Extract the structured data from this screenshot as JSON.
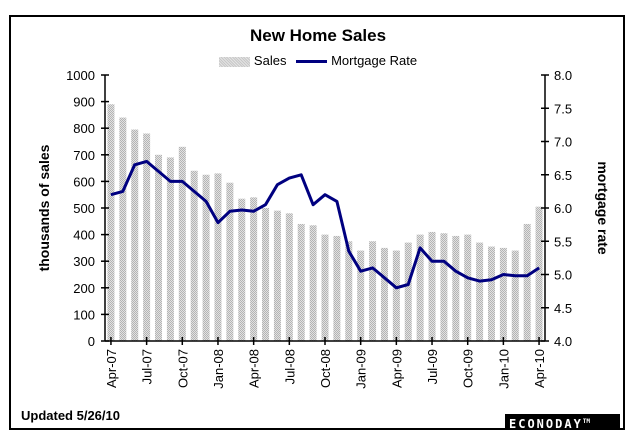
{
  "chart_data": {
    "type": "bar+line",
    "title": "New Home Sales",
    "legend": [
      "Sales",
      "Mortgage Rate"
    ],
    "legend_placement": "top-center",
    "ylabel_left": "thousands of sales",
    "ylabel_right": "mortgage rate",
    "ylim_left": [
      0,
      1000
    ],
    "ylim_right": [
      4.0,
      8.0
    ],
    "yticks_left": [
      "0",
      "100",
      "200",
      "300",
      "400",
      "500",
      "600",
      "700",
      "800",
      "900",
      "1000"
    ],
    "yticks_right": [
      "4.0",
      "4.5",
      "5.0",
      "5.5",
      "6.0",
      "6.5",
      "7.0",
      "7.5",
      "8.0"
    ],
    "x_tick_labels": [
      "Apr-07",
      "Jul-07",
      "Oct-07",
      "Jan-08",
      "Apr-08",
      "Jul-08",
      "Oct-08",
      "Jan-09",
      "Apr-09",
      "Jul-09",
      "Oct-09",
      "Jan-10",
      "Apr-10"
    ],
    "categories": [
      "Apr-07",
      "May-07",
      "Jun-07",
      "Jul-07",
      "Aug-07",
      "Sep-07",
      "Oct-07",
      "Nov-07",
      "Dec-07",
      "Jan-08",
      "Feb-08",
      "Mar-08",
      "Apr-08",
      "May-08",
      "Jun-08",
      "Jul-08",
      "Aug-08",
      "Sep-08",
      "Oct-08",
      "Nov-08",
      "Dec-08",
      "Jan-09",
      "Feb-09",
      "Mar-09",
      "Apr-09",
      "May-09",
      "Jun-09",
      "Jul-09",
      "Aug-09",
      "Sep-09",
      "Oct-09",
      "Nov-09",
      "Dec-09",
      "Jan-10",
      "Feb-10",
      "Mar-10",
      "Apr-10"
    ],
    "series": [
      {
        "name": "Sales",
        "type": "bar",
        "axis": "left",
        "color": "#c8c8c8",
        "values": [
          890,
          840,
          795,
          780,
          700,
          690,
          730,
          640,
          625,
          630,
          595,
          535,
          540,
          500,
          490,
          480,
          440,
          435,
          400,
          395,
          375,
          340,
          375,
          350,
          340,
          370,
          400,
          410,
          405,
          395,
          400,
          370,
          355,
          350,
          340,
          440,
          505
        ]
      },
      {
        "name": "Mortgage Rate",
        "type": "line",
        "axis": "right",
        "color": "#000080",
        "values": [
          6.2,
          6.25,
          6.65,
          6.7,
          6.55,
          6.4,
          6.4,
          6.25,
          6.1,
          5.78,
          5.95,
          5.97,
          5.95,
          6.05,
          6.35,
          6.45,
          6.5,
          6.05,
          6.2,
          6.1,
          5.35,
          5.05,
          5.1,
          4.95,
          4.8,
          4.85,
          5.4,
          5.2,
          5.2,
          5.05,
          4.95,
          4.9,
          4.92,
          5.0,
          4.98,
          4.98,
          5.1
        ]
      }
    ]
  },
  "footer": {
    "updated": "Updated 5/26/10",
    "brand": "ECONODAY",
    "brand_mark": "TM"
  }
}
